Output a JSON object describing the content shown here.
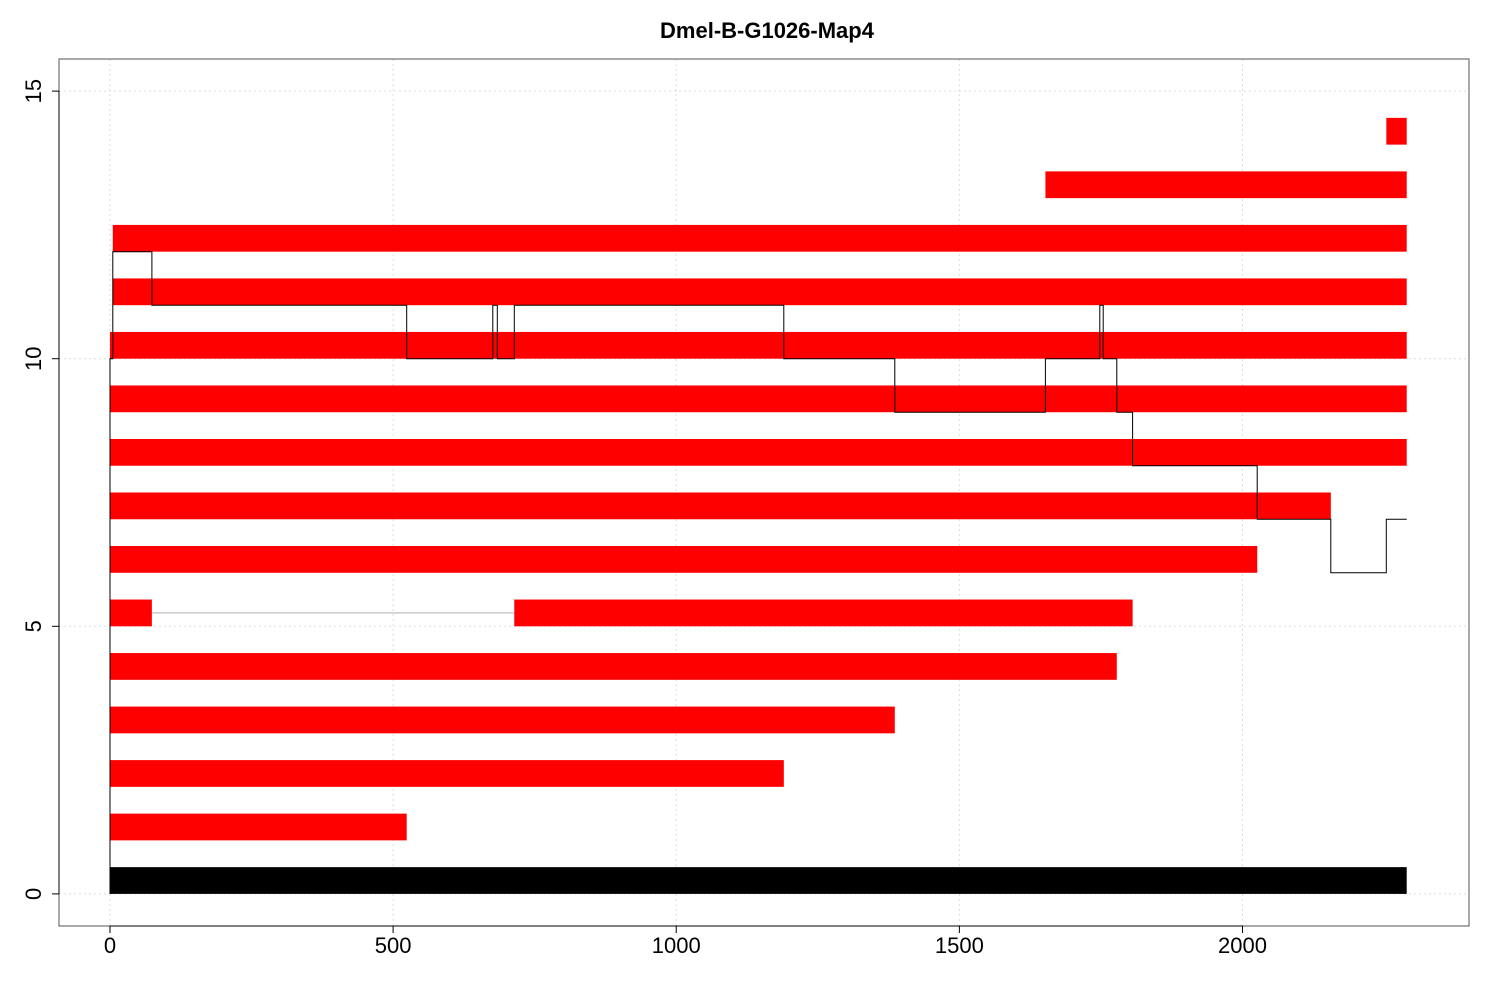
{
  "chart_data": {
    "type": "bar",
    "title": "Dmel-B-G1026-Map4",
    "xlabel": "",
    "ylabel": "",
    "xlim": [
      -90,
      2400
    ],
    "ylim": [
      -0.6,
      15.6
    ],
    "grid": true,
    "x_ticks": [
      0,
      500,
      1000,
      1500,
      2000
    ],
    "y_ticks": [
      0,
      5,
      10,
      15
    ],
    "colors": {
      "segment": "#ff0000",
      "reference": "#000000",
      "path": "#000000",
      "connector": "#cccccc",
      "grid": "#dddddd"
    },
    "reference_bar": {
      "y": 0,
      "x_start": 0,
      "x_end": 2290
    },
    "segments": [
      {
        "y": 1,
        "x_start": 0,
        "x_end": 524
      },
      {
        "y": 2,
        "x_start": 0,
        "x_end": 1190
      },
      {
        "y": 3,
        "x_start": 0,
        "x_end": 1386
      },
      {
        "y": 4,
        "x_start": 0,
        "x_end": 1778
      },
      {
        "y": 5,
        "x_start": 0,
        "x_end": 74
      },
      {
        "y": 5,
        "x_start": 714,
        "x_end": 1806
      },
      {
        "y": 6,
        "x_start": 0,
        "x_end": 2026
      },
      {
        "y": 7,
        "x_start": 0,
        "x_end": 2156
      },
      {
        "y": 8,
        "x_start": 0,
        "x_end": 2290
      },
      {
        "y": 9,
        "x_start": 0,
        "x_end": 2290
      },
      {
        "y": 10,
        "x_start": 0,
        "x_end": 2290
      },
      {
        "y": 11,
        "x_start": 5,
        "x_end": 2290
      },
      {
        "y": 12,
        "x_start": 5,
        "x_end": 2290
      },
      {
        "y": 13,
        "x_start": 1652,
        "x_end": 2290
      },
      {
        "y": 14,
        "x_start": 2254,
        "x_end": 2290
      }
    ],
    "connector": {
      "y": 5,
      "x_start": 74,
      "x_end": 714
    },
    "path": [
      [
        0,
        0
      ],
      [
        0,
        10
      ],
      [
        5,
        10
      ],
      [
        5,
        12
      ],
      [
        74,
        12
      ],
      [
        74,
        11
      ],
      [
        524,
        11
      ],
      [
        524,
        10
      ],
      [
        676,
        10
      ],
      [
        676,
        11
      ],
      [
        684,
        11
      ],
      [
        684,
        10
      ],
      [
        714,
        10
      ],
      [
        714,
        11
      ],
      [
        1190,
        11
      ],
      [
        1190,
        10
      ],
      [
        1386,
        10
      ],
      [
        1386,
        9
      ],
      [
        1652,
        9
      ],
      [
        1652,
        10
      ],
      [
        1748,
        10
      ],
      [
        1748,
        11
      ],
      [
        1754,
        11
      ],
      [
        1754,
        10
      ],
      [
        1778,
        10
      ],
      [
        1778,
        9
      ],
      [
        1806,
        9
      ],
      [
        1806,
        8
      ],
      [
        2026,
        8
      ],
      [
        2026,
        7
      ],
      [
        2156,
        7
      ],
      [
        2156,
        6
      ],
      [
        2254,
        6
      ],
      [
        2254,
        7
      ],
      [
        2290,
        7
      ]
    ]
  }
}
